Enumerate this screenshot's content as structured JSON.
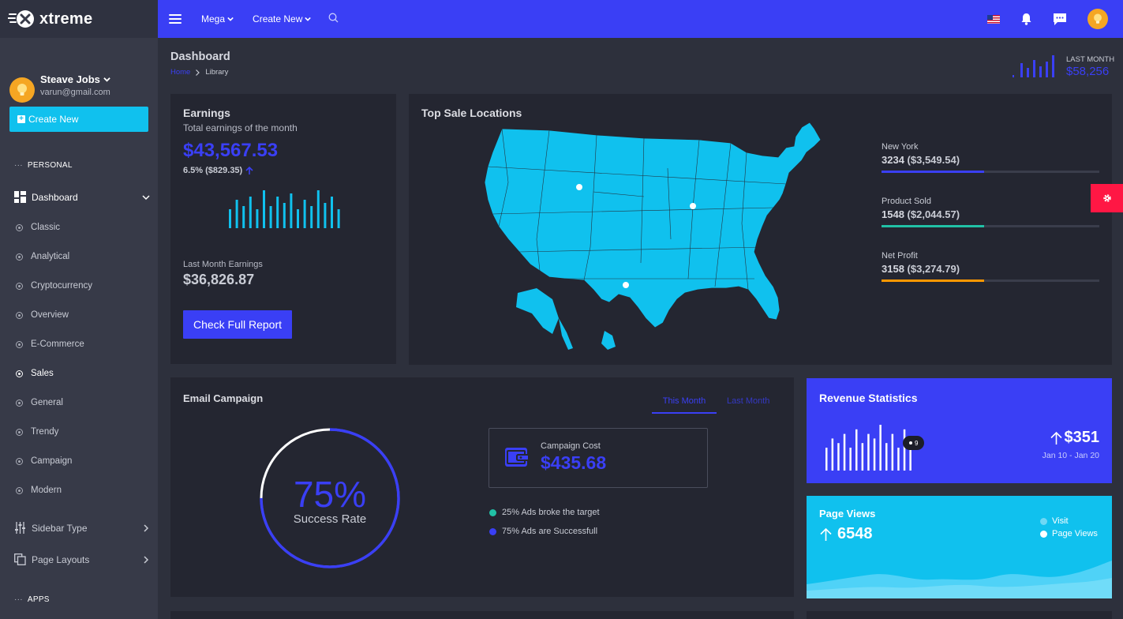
{
  "brand": {
    "name": "xtreme"
  },
  "profile": {
    "name": "Steave Jobs",
    "email": "varun@gmail.com"
  },
  "sidebar": {
    "create_label": "Create New",
    "section_personal": "PERSONAL",
    "dashboard_label": "Dashboard",
    "items": [
      {
        "label": "Classic"
      },
      {
        "label": "Analytical"
      },
      {
        "label": "Cryptocurrency"
      },
      {
        "label": "Overview"
      },
      {
        "label": "E-Commerce"
      },
      {
        "label": "Sales"
      },
      {
        "label": "General"
      },
      {
        "label": "Trendy"
      },
      {
        "label": "Campaign"
      },
      {
        "label": "Modern"
      }
    ],
    "active_item": "Sales",
    "sidebar_type_label": "Sidebar Type",
    "page_layouts_label": "Page Layouts",
    "section_apps": "APPS"
  },
  "topbar": {
    "mega_label": "Mega",
    "create_new_label": "Create New"
  },
  "header": {
    "title": "Dashboard",
    "breadcrumb_home": "Home",
    "breadcrumb_current": "Library",
    "last_month_label": "LAST MONTH",
    "last_month_value": "$58,256"
  },
  "earnings": {
    "title": "Earnings",
    "subtitle": "Total earnings of the month",
    "value": "$43,567.53",
    "change": "6.5% ($829.35)",
    "last_month_label": "Last Month Earnings",
    "last_month_value": "$36,826.87",
    "button_label": "Check Full Report",
    "bars": [
      6,
      9,
      7,
      10,
      6,
      12,
      7,
      10,
      8,
      11,
      6,
      9,
      7,
      12,
      8,
      10,
      6
    ]
  },
  "top_sale": {
    "title": "Top Sale Locations",
    "stats": [
      {
        "name": "New York",
        "value": "3234",
        "amount": "($3,549.54)",
        "progress": 0.47,
        "color": "#3a3ff5"
      },
      {
        "name": "Product Sold",
        "value": "1548",
        "amount": "($2,044.57)",
        "progress": 0.47,
        "color": "#21c1a6"
      },
      {
        "name": "Net Profit",
        "value": "3158",
        "amount": "($3,274.79)",
        "progress": 0.47,
        "color": "#ff9800"
      }
    ]
  },
  "email_campaign": {
    "title": "Email Campaign",
    "tab_this_month": "This Month",
    "tab_last_month": "Last Month",
    "success_percent": "75%",
    "success_label": "Success Rate",
    "success_fraction": 0.75,
    "cost_label": "Campaign Cost",
    "cost_value": "$435.68",
    "legend": [
      {
        "label": "25% Ads broke the target",
        "color": "#21c1a6"
      },
      {
        "label": "75% Ads are Successfull",
        "color": "#3a3ff5"
      }
    ]
  },
  "revenue": {
    "title": "Revenue Statistics",
    "value": "$351",
    "date_range": "Jan 10 - Jan 20",
    "tooltip": "9",
    "bars": [
      5,
      7,
      6,
      8,
      5,
      9,
      6,
      8,
      7,
      10,
      6,
      8,
      5,
      9,
      6
    ]
  },
  "page_views": {
    "title": "Page Views",
    "value": "6548",
    "legend_visit": "Visit",
    "legend_page_views": "Page Views"
  },
  "colors": {
    "accent": "#3a3ff5",
    "cyan": "#10c1ee",
    "danger": "#ff1744"
  }
}
